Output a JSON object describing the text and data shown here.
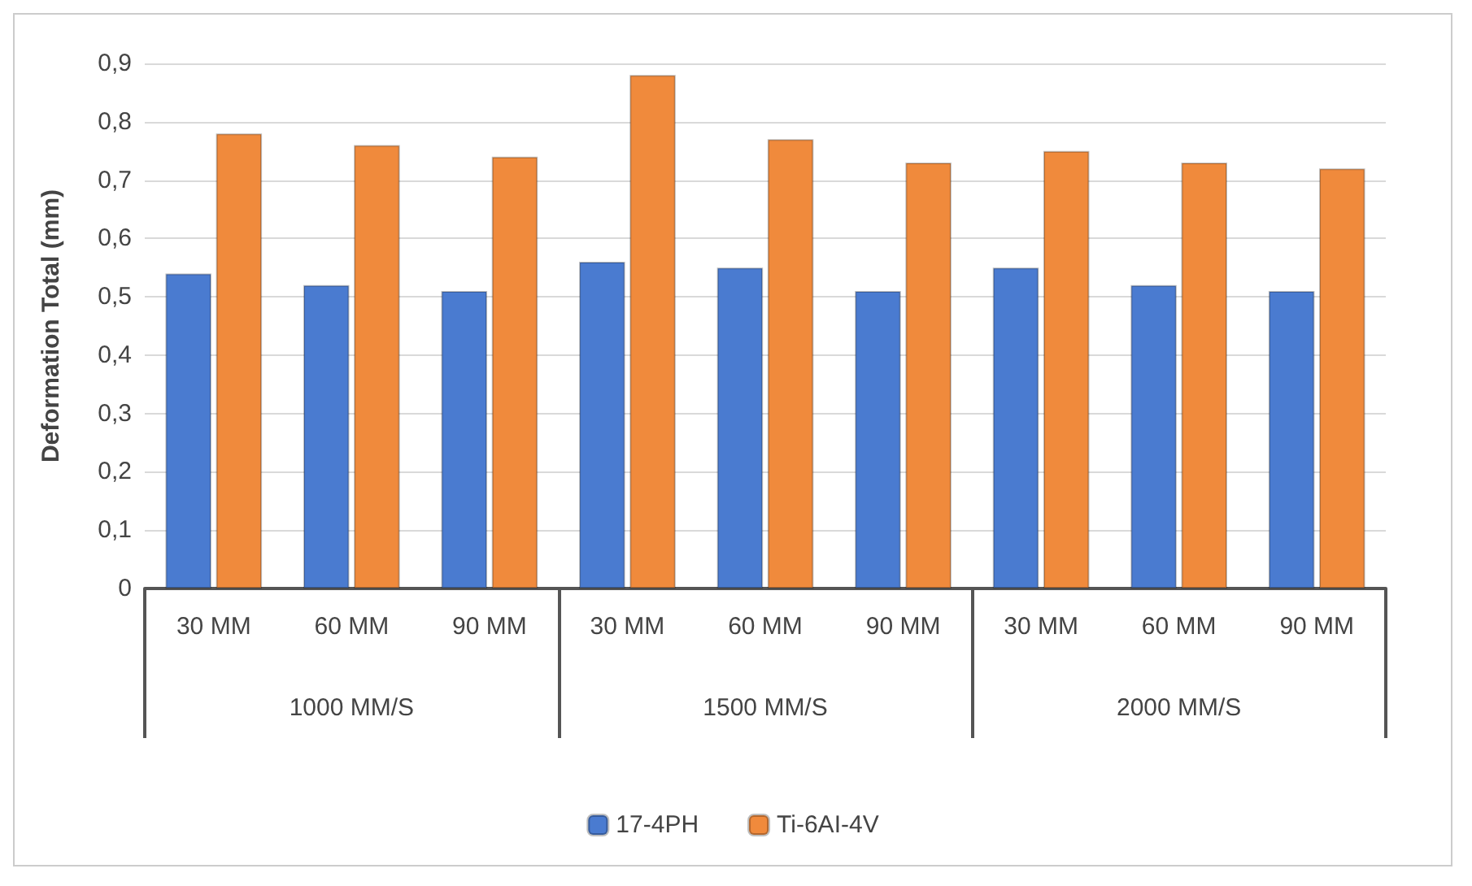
{
  "chart_data": {
    "type": "bar",
    "ylabel": "Deformation Total (mm)",
    "categories": [
      "30 MM",
      "60 MM",
      "90 MM",
      "30 MM",
      "60 MM",
      "90 MM",
      "30 MM",
      "60 MM",
      "90 MM"
    ],
    "annotations": [
      "1000 MM/S",
      "1500 MM/S",
      "2000 MM/S"
    ],
    "series": [
      {
        "name": "17-4PH",
        "color": "#4a7bd0",
        "values": [
          0.54,
          0.52,
          0.51,
          0.56,
          0.55,
          0.51,
          0.55,
          0.52,
          0.51
        ]
      },
      {
        "name": "Ti-6AI-4V",
        "color": "#f08a3c",
        "values": [
          0.78,
          0.76,
          0.74,
          0.88,
          0.77,
          0.73,
          0.75,
          0.73,
          0.72
        ]
      }
    ],
    "ylim": [
      0,
      0.9
    ],
    "yticks": [
      0,
      {
        "value": 0.1,
        "label": "0,1"
      },
      {
        "value": 0.2,
        "label": "0,2"
      },
      {
        "value": 0.3,
        "label": "0,3"
      },
      {
        "value": 0.4,
        "label": "0,4"
      },
      {
        "value": 0.5,
        "label": "0,5"
      },
      {
        "value": 0.6,
        "label": "0,6"
      },
      {
        "value": 0.7,
        "label": "0,7"
      },
      {
        "value": 0.8,
        "label": "0,8"
      },
      {
        "value": 0.9,
        "label": "0,9"
      }
    ],
    "grid": "y",
    "legend": "bottom"
  }
}
